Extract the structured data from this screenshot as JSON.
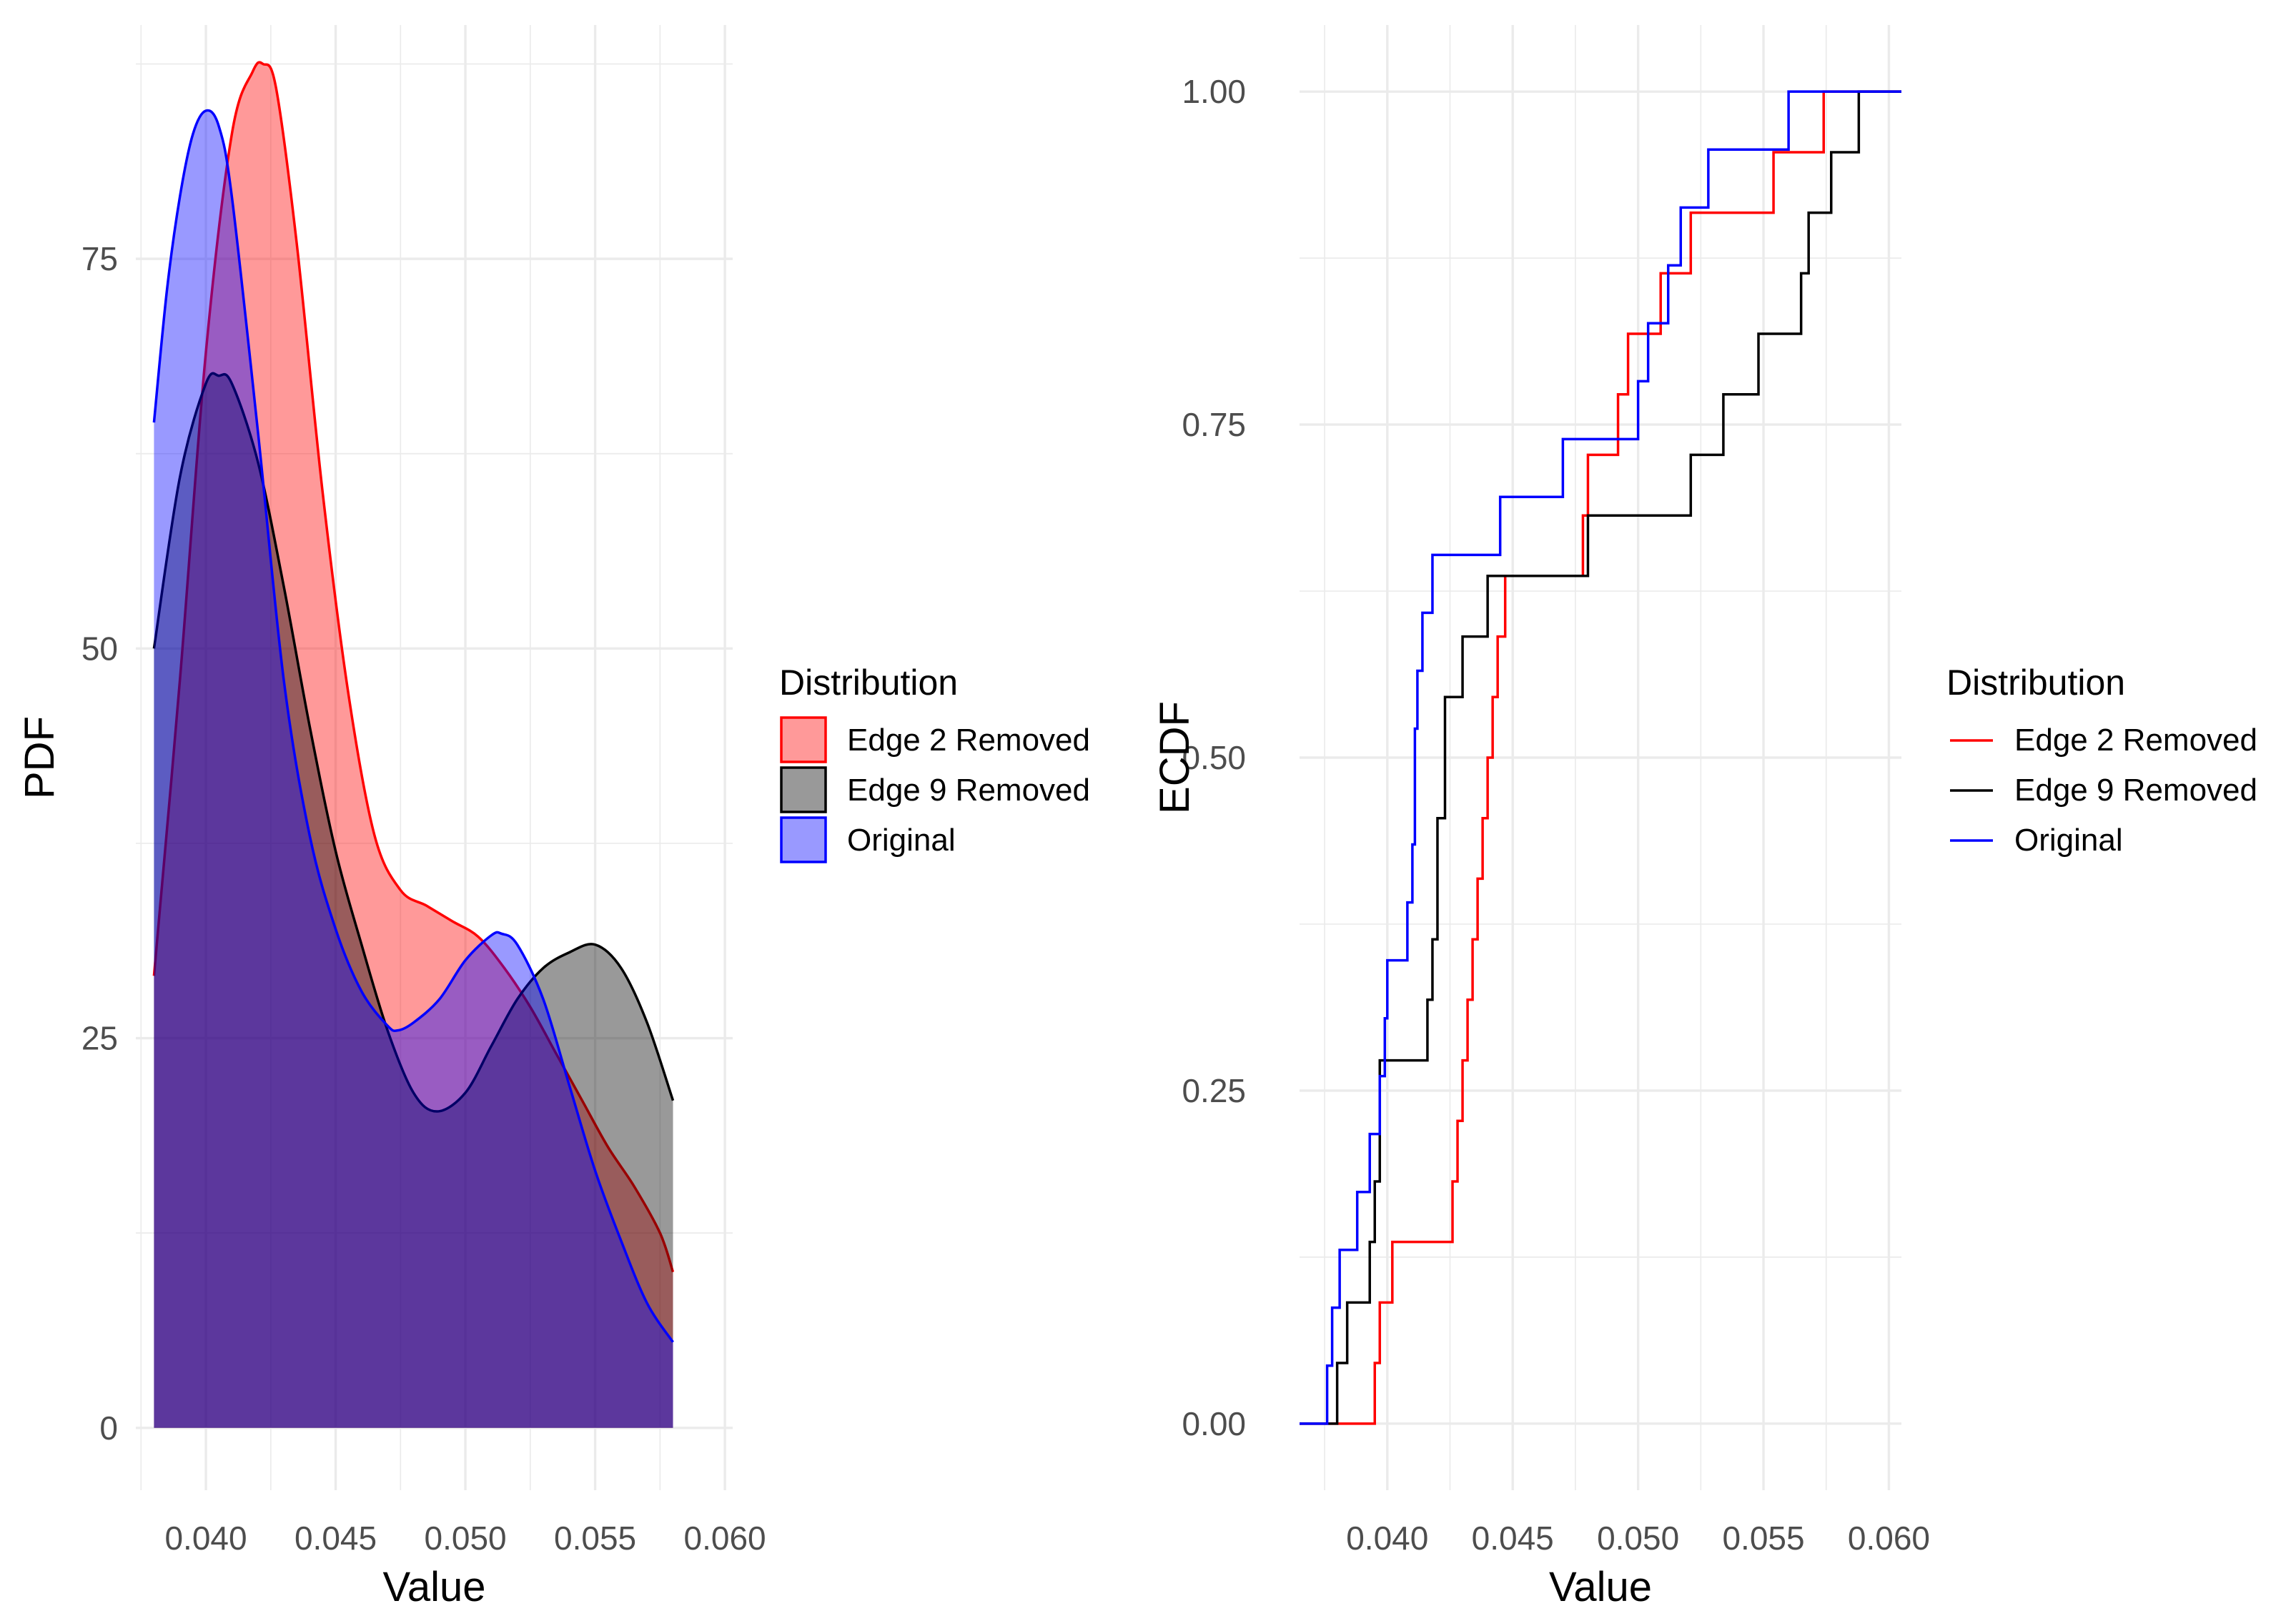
{
  "chart_data": [
    {
      "type": "area",
      "title": "",
      "xlabel": "Value",
      "ylabel": "PDF",
      "xlim": [
        0.0373,
        0.0603
      ],
      "ylim": [
        -4,
        90
      ],
      "xticks": [
        0.04,
        0.045,
        0.05,
        0.055,
        0.06
      ],
      "xtick_labels": [
        "0.040",
        "0.045",
        "0.050",
        "0.055",
        "0.060"
      ],
      "yticks": [
        0,
        25,
        50,
        75
      ],
      "ytick_labels": [
        "0",
        "25",
        "50",
        "75"
      ],
      "grid": true,
      "legend": {
        "title": "Distribution",
        "position": "right"
      },
      "series": [
        {
          "name": "Edge 2 Removed",
          "line_color": "#ff0000",
          "fill_color": "#ff0000",
          "fill_opacity": 0.4,
          "x": [
            0.038,
            0.039,
            0.04,
            0.041,
            0.0418,
            0.0422,
            0.0427,
            0.0435,
            0.0445,
            0.0455,
            0.0465,
            0.0475,
            0.0485,
            0.0495,
            0.0505,
            0.0515,
            0.0525,
            0.0535,
            0.0545,
            0.0555,
            0.0565,
            0.0575,
            0.058
          ],
          "y": [
            29,
            48,
            69,
            83,
            87,
            87.5,
            86,
            76,
            60,
            47,
            38,
            34.5,
            33.5,
            32.5,
            31.5,
            29.5,
            27,
            24,
            21,
            18,
            15.5,
            12.5,
            10
          ]
        },
        {
          "name": "Edge 9 Removed",
          "line_color": "#000000",
          "fill_color": "#000000",
          "fill_opacity": 0.4,
          "x": [
            0.038,
            0.039,
            0.04,
            0.0405,
            0.041,
            0.042,
            0.043,
            0.044,
            0.045,
            0.046,
            0.047,
            0.048,
            0.0489,
            0.05,
            0.051,
            0.052,
            0.053,
            0.054,
            0.055,
            0.056,
            0.057,
            0.058
          ],
          "y": [
            50,
            61,
            67,
            67.5,
            67,
            62,
            54,
            45,
            37,
            31,
            25.5,
            21.5,
            20.3,
            21.5,
            24.5,
            27.5,
            29.5,
            30.5,
            31,
            29.5,
            26,
            21
          ]
        },
        {
          "name": "Original",
          "line_color": "#0000ff",
          "fill_color": "#0000ff",
          "fill_opacity": 0.4,
          "x": [
            0.038,
            0.0385,
            0.039,
            0.0395,
            0.04,
            0.0405,
            0.041,
            0.042,
            0.043,
            0.044,
            0.045,
            0.046,
            0.047,
            0.0474,
            0.048,
            0.049,
            0.05,
            0.051,
            0.0514,
            0.052,
            0.053,
            0.054,
            0.055,
            0.056,
            0.057,
            0.058
          ],
          "y": [
            64.5,
            73,
            79,
            83,
            84.5,
            83.5,
            79,
            64,
            48,
            38,
            32,
            28,
            25.8,
            25.5,
            26,
            27.5,
            30,
            31.6,
            31.7,
            31,
            27.5,
            22,
            16.5,
            12,
            8,
            5.5
          ]
        }
      ]
    },
    {
      "type": "line",
      "title": "",
      "xlabel": "Value",
      "ylabel": "ECDF",
      "xlim": [
        0.0365,
        0.0605
      ],
      "ylim": [
        -0.05,
        1.05
      ],
      "xticks": [
        0.04,
        0.045,
        0.05,
        0.055,
        0.06
      ],
      "xtick_labels": [
        "0.040",
        "0.045",
        "0.050",
        "0.055",
        "0.060"
      ],
      "yticks": [
        0,
        0.25,
        0.5,
        0.75,
        1
      ],
      "ytick_labels": [
        "0.00",
        "0.25",
        "0.50",
        "0.75",
        "1.00"
      ],
      "grid": true,
      "legend": {
        "title": "Distribution",
        "position": "right"
      },
      "series": [
        {
          "name": "Edge 2 Removed",
          "color": "#ff0000",
          "x": [
            0.0365,
            0.0395,
            0.0397,
            0.0402,
            0.0426,
            0.0428,
            0.043,
            0.0432,
            0.0434,
            0.0436,
            0.0438,
            0.044,
            0.0442,
            0.0444,
            0.0447,
            0.045,
            0.0454,
            0.0458,
            0.0478,
            0.048,
            0.0483,
            0.0492,
            0.0496,
            0.0509,
            0.0521,
            0.0529,
            0.055,
            0.0554,
            0.0567,
            0.0574,
            0.06,
            0.0605
          ],
          "y": [
            0,
            0.0455,
            0.0909,
            0.1364,
            0.1818,
            0.2273,
            0.2727,
            0.3182,
            0.3636,
            0.4091,
            0.4545,
            0.5,
            0.5455,
            0.5909,
            0.6364,
            0.6364,
            0.6364,
            0.6364,
            0.6818,
            0.7273,
            0.7273,
            0.7727,
            0.8182,
            0.8636,
            0.9091,
            0.9091,
            0.9091,
            0.9545,
            0.9545,
            1,
            1,
            1
          ]
        },
        {
          "name": "Edge 9 Removed",
          "color": "#000000",
          "x": [
            0.0365,
            0.038,
            0.0384,
            0.0393,
            0.0395,
            0.0397,
            0.0408,
            0.0416,
            0.0418,
            0.042,
            0.0423,
            0.0425,
            0.0427,
            0.043,
            0.044,
            0.0442,
            0.048,
            0.0483,
            0.0521,
            0.0534,
            0.0548,
            0.0565,
            0.0568,
            0.0577,
            0.0588,
            0.06,
            0.0605
          ],
          "y": [
            0,
            0.0455,
            0.0909,
            0.1364,
            0.1818,
            0.2727,
            0.2727,
            0.3182,
            0.3636,
            0.4545,
            0.5455,
            0.5455,
            0.5455,
            0.5909,
            0.6364,
            0.6364,
            0.6818,
            0.6818,
            0.7273,
            0.7727,
            0.8182,
            0.8636,
            0.9091,
            0.9545,
            1,
            1,
            1
          ]
        },
        {
          "name": "Original",
          "color": "#0000ff",
          "x": [
            0.0365,
            0.0376,
            0.0378,
            0.0381,
            0.0388,
            0.0393,
            0.0397,
            0.0399,
            0.04,
            0.0408,
            0.041,
            0.0411,
            0.0412,
            0.0414,
            0.0418,
            0.042,
            0.0445,
            0.047,
            0.05,
            0.0504,
            0.0512,
            0.0517,
            0.0528,
            0.0538,
            0.056,
            0.0573,
            0.06,
            0.0605
          ],
          "y": [
            0,
            0.0435,
            0.087,
            0.1304,
            0.1739,
            0.2174,
            0.2609,
            0.3043,
            0.3478,
            0.3913,
            0.4348,
            0.5217,
            0.5652,
            0.6087,
            0.6522,
            0.6522,
            0.6957,
            0.7391,
            0.7826,
            0.8261,
            0.8696,
            0.913,
            0.9565,
            0.9565,
            1,
            1,
            1,
            1
          ]
        }
      ]
    }
  ],
  "legend_pdf": {
    "title": "Distribution",
    "items": [
      {
        "label": "Edge 2 Removed",
        "color": "#ff0000"
      },
      {
        "label": "Edge 9 Removed",
        "color": "#000000"
      },
      {
        "label": "Original",
        "color": "#0000ff"
      }
    ]
  },
  "legend_ecdf": {
    "title": "Distribution",
    "items": [
      {
        "label": "Edge 2 Removed",
        "color": "#ff0000"
      },
      {
        "label": "Edge 9 Removed",
        "color": "#000000"
      },
      {
        "label": "Original",
        "color": "#0000ff"
      }
    ]
  }
}
